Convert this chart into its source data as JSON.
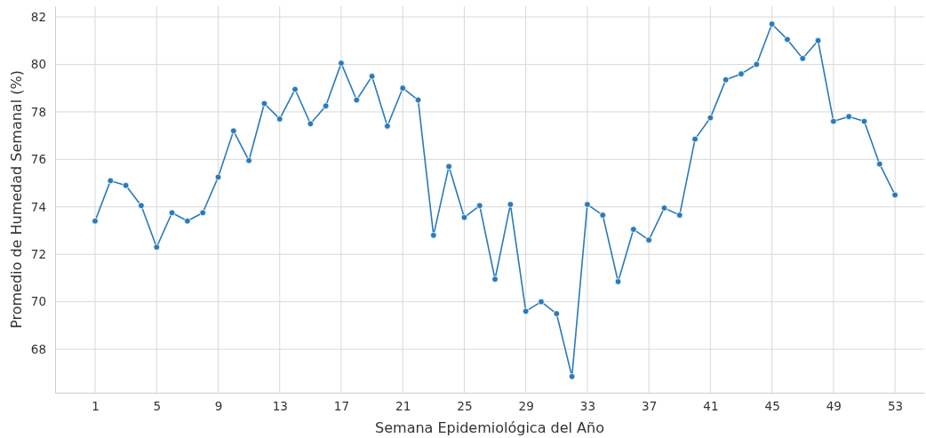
{
  "chart_data": {
    "type": "line",
    "xlabel": "Semana Epidemiológica del Año",
    "ylabel": "Promedio de Humedad Semanal (%)",
    "x": [
      1,
      2,
      3,
      4,
      5,
      6,
      7,
      8,
      9,
      10,
      11,
      12,
      13,
      14,
      15,
      16,
      17,
      18,
      19,
      20,
      21,
      22,
      23,
      24,
      25,
      26,
      27,
      28,
      29,
      30,
      31,
      32,
      33,
      34,
      35,
      36,
      37,
      38,
      39,
      40,
      41,
      42,
      43,
      44,
      45,
      46,
      47,
      48,
      49,
      50,
      51,
      52,
      53
    ],
    "series": [
      {
        "color": "#2a7ab9",
        "values": [
          73.4,
          75.1,
          74.9,
          74.05,
          72.3,
          73.75,
          73.4,
          73.75,
          75.25,
          77.2,
          75.95,
          78.35,
          77.7,
          78.95,
          77.5,
          78.25,
          80.05,
          78.5,
          79.5,
          77.4,
          79.0,
          78.5,
          72.8,
          75.7,
          73.55,
          74.05,
          70.95,
          74.1,
          69.6,
          70.0,
          69.5,
          66.85,
          74.1,
          73.65,
          70.85,
          73.05,
          72.6,
          73.95,
          73.65,
          76.85,
          77.75,
          79.35,
          79.6,
          80.0,
          81.7,
          81.05,
          80.25,
          81.0,
          77.6,
          77.8,
          77.6,
          75.8,
          74.5
        ]
      }
    ],
    "xlim": [
      -1.6,
      54.9
    ],
    "xticks": [
      1,
      5,
      9,
      13,
      17,
      21,
      25,
      29,
      33,
      37,
      41,
      45,
      49,
      53
    ],
    "ylim": [
      66.17,
      82.45
    ],
    "yticks": [
      68,
      70,
      72,
      74,
      76,
      78,
      80,
      82
    ],
    "grid": true,
    "marker": "circle",
    "line_style": "solid"
  }
}
